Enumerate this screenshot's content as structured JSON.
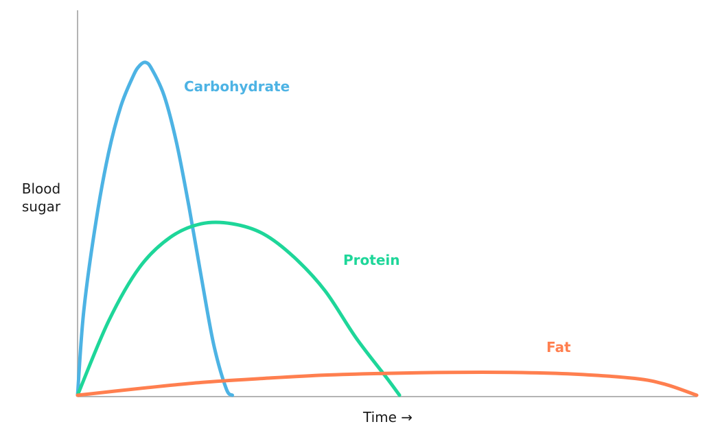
{
  "chart_data": {
    "type": "line",
    "title": "",
    "xlabel": "Time →",
    "ylabel": [
      "Blood",
      "sugar"
    ],
    "xlim": [
      0,
      100
    ],
    "ylim": [
      0,
      100
    ],
    "grid": false,
    "legend": "inline labels",
    "series": [
      {
        "name": "Carbohydrate",
        "color": "#4db3e4",
        "points": [
          [
            0,
            0
          ],
          [
            1,
            25
          ],
          [
            3,
            52
          ],
          [
            5,
            72
          ],
          [
            7,
            86
          ],
          [
            9,
            95
          ],
          [
            10,
            98
          ],
          [
            11,
            99
          ],
          [
            12,
            97
          ],
          [
            14,
            89
          ],
          [
            16,
            75
          ],
          [
            18,
            56
          ],
          [
            20,
            35
          ],
          [
            22,
            15
          ],
          [
            24,
            2
          ],
          [
            25,
            0
          ]
        ]
      },
      {
        "name": "Protein",
        "color": "#1ed699",
        "points": [
          [
            0,
            0
          ],
          [
            5,
            22
          ],
          [
            10,
            38
          ],
          [
            15,
            47
          ],
          [
            20,
            51
          ],
          [
            25,
            51
          ],
          [
            30,
            48
          ],
          [
            35,
            41
          ],
          [
            40,
            31
          ],
          [
            45,
            17
          ],
          [
            50,
            5
          ],
          [
            52,
            0
          ]
        ]
      },
      {
        "name": "Fat",
        "color": "#ff7f4f",
        "points": [
          [
            0,
            0
          ],
          [
            10,
            2
          ],
          [
            20,
            3.8
          ],
          [
            30,
            5
          ],
          [
            40,
            6
          ],
          [
            50,
            6.5
          ],
          [
            60,
            6.8
          ],
          [
            70,
            6.8
          ],
          [
            80,
            6.3
          ],
          [
            90,
            5
          ],
          [
            95,
            3.2
          ],
          [
            100,
            0
          ]
        ]
      }
    ]
  }
}
